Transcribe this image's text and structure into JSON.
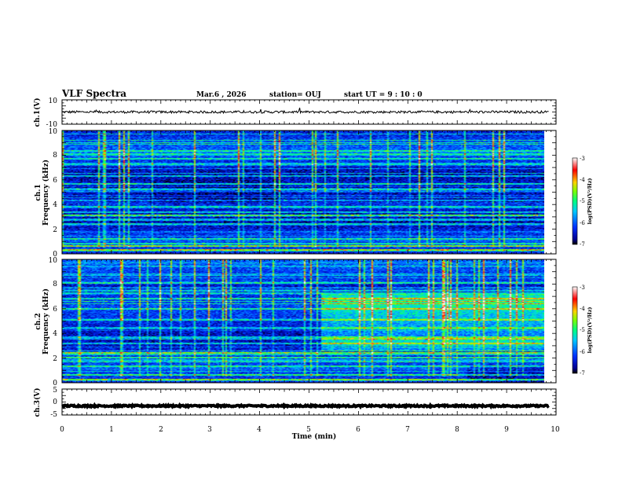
{
  "header": {
    "title": "VLF Spectra",
    "date": "Mar.6 , 2026",
    "station": "station= OUJ",
    "start_ut": "start UT = 9 : 10 : 0"
  },
  "colors": {
    "ink": "#000000",
    "background": "#ffffff"
  },
  "chart_data": [
    {
      "type": "line",
      "id": "ch1-waveform",
      "ylabel": "ch.1(V)",
      "ylim": [
        -10,
        10
      ],
      "yticks": [
        "10",
        "-10"
      ],
      "xlim": [
        0,
        10
      ],
      "description_values": "noise waveform around 0 V, amplitude about 1 V",
      "mean": 0,
      "amplitude": 1
    },
    {
      "type": "heatmap",
      "id": "ch1-spectrogram",
      "ylabel_line1": "ch.1",
      "ylabel_line2": "Frequency (kHz)",
      "ylim": [
        0,
        10
      ],
      "yticks": [
        "0",
        "2",
        "4",
        "6",
        "8",
        "10"
      ],
      "xlim": [
        0,
        9.85
      ],
      "z_label": "log(PSD)(V²/Hz)",
      "z_range": [
        -7,
        -3
      ],
      "z_ticks": [
        "-3",
        "-4",
        "-5",
        "-6",
        "-7"
      ]
    },
    {
      "type": "heatmap",
      "id": "ch2-spectrogram",
      "ylabel_line1": "ch.2",
      "ylabel_line2": "Frequency (kHz)",
      "ylim": [
        0,
        10
      ],
      "yticks": [
        "0",
        "2",
        "4",
        "6",
        "8",
        "10"
      ],
      "xlim": [
        0,
        9.85
      ],
      "z_label": "log(PSD)(V²/Hz)",
      "z_range": [
        -7,
        -3
      ],
      "z_ticks": [
        "-3",
        "-4",
        "-5",
        "-6",
        "-7"
      ],
      "note": "enhanced emission band 2.5-7 kHz after about 5.3 min"
    },
    {
      "type": "line",
      "id": "ch3-waveform",
      "ylabel": "ch.3(V)",
      "ylim": [
        -5,
        5
      ],
      "yticks": [
        "5",
        "0",
        "-5"
      ],
      "xlim": [
        0,
        10
      ],
      "mean": -1.5,
      "amplitude": 0.3
    }
  ],
  "xaxis": {
    "label": "Time (min)",
    "ticks": [
      "0",
      "1",
      "2",
      "3",
      "4",
      "5",
      "6",
      "7",
      "8",
      "9",
      "10"
    ],
    "range": [
      0,
      10
    ]
  }
}
